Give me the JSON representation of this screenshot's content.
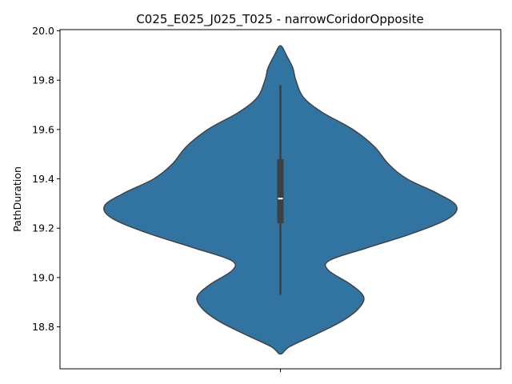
{
  "chart_data": {
    "type": "violin",
    "title": "C025_E025_J025_T025 - narrowCoridorOpposite",
    "xlabel": "",
    "ylabel": "PathDuration",
    "ylim": [
      18.63,
      20.005
    ],
    "yticks": [
      18.8,
      19.0,
      19.2,
      19.4,
      19.6,
      19.8,
      20.0
    ],
    "ytick_labels": [
      "18.8",
      "19.0",
      "19.2",
      "19.4",
      "19.6",
      "19.8",
      "20.0"
    ],
    "grid": false,
    "legend": "none",
    "fill_color": "#3274a1",
    "edge_color": "#3f3f3f",
    "box_color": "#3f3f3f",
    "median_color": "#ffffff",
    "box_stats": {
      "whisker_low": 18.93,
      "q1": 19.22,
      "median": 19.32,
      "q3": 19.48,
      "whisker_high": 19.78
    },
    "density_profile": [
      {
        "y": 18.69,
        "half_width": 0.0
      },
      {
        "y": 18.72,
        "half_width": 0.06
      },
      {
        "y": 18.77,
        "half_width": 0.23
      },
      {
        "y": 18.82,
        "half_width": 0.39
      },
      {
        "y": 18.87,
        "half_width": 0.5
      },
      {
        "y": 18.92,
        "half_width": 0.54
      },
      {
        "y": 18.97,
        "half_width": 0.46
      },
      {
        "y": 19.03,
        "half_width": 0.31
      },
      {
        "y": 19.07,
        "half_width": 0.32
      },
      {
        "y": 19.12,
        "half_width": 0.56
      },
      {
        "y": 19.18,
        "half_width": 0.86
      },
      {
        "y": 19.24,
        "half_width": 1.09
      },
      {
        "y": 19.29,
        "half_width": 1.14
      },
      {
        "y": 19.34,
        "half_width": 1.02
      },
      {
        "y": 19.4,
        "half_width": 0.82
      },
      {
        "y": 19.46,
        "half_width": 0.7
      },
      {
        "y": 19.53,
        "half_width": 0.61
      },
      {
        "y": 19.6,
        "half_width": 0.47
      },
      {
        "y": 19.67,
        "half_width": 0.27
      },
      {
        "y": 19.73,
        "half_width": 0.15
      },
      {
        "y": 19.8,
        "half_width": 0.1
      },
      {
        "y": 19.85,
        "half_width": 0.08
      },
      {
        "y": 19.9,
        "half_width": 0.04
      },
      {
        "y": 19.94,
        "half_width": 0.0
      }
    ]
  }
}
